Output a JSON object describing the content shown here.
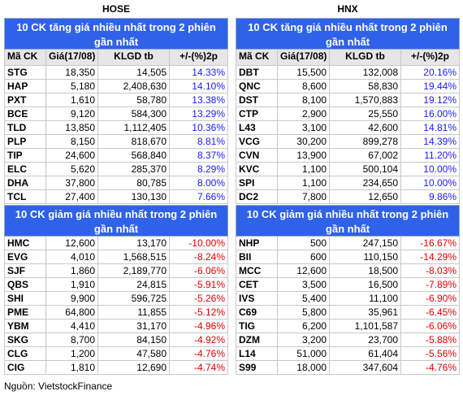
{
  "exchanges": [
    {
      "name": "HOSE",
      "gainers": {
        "title": "10 CK tăng giá nhiều nhất trong 2 phiên gần nhất",
        "columns": [
          "Mã CK",
          "Giá(17/08)",
          "KLGD tb",
          "+/-(%)2p"
        ],
        "rows": [
          [
            "STG",
            "18,350",
            "14,505",
            "14.33%"
          ],
          [
            "HAP",
            "5,180",
            "2,408,630",
            "14.10%"
          ],
          [
            "PXT",
            "1,610",
            "58,780",
            "13.38%"
          ],
          [
            "BCE",
            "9,120",
            "584,300",
            "13.29%"
          ],
          [
            "TLD",
            "13,850",
            "1,112,405",
            "10.36%"
          ],
          [
            "PLP",
            "8,150",
            "818,670",
            "8.81%"
          ],
          [
            "TIP",
            "24,600",
            "568,840",
            "8.37%"
          ],
          [
            "ELC",
            "5,620",
            "285,370",
            "8.29%"
          ],
          [
            "DHA",
            "37,800",
            "80,785",
            "8.00%"
          ],
          [
            "TCL",
            "27,400",
            "130,130",
            "7.66%"
          ]
        ]
      },
      "losers": {
        "title": "10 CK giảm giá nhiều nhất trong 2 phiên gần nhất",
        "rows": [
          [
            "HMC",
            "12,600",
            "13,170",
            "-10.00%"
          ],
          [
            "EVG",
            "4,010",
            "1,568,515",
            "-8.24%"
          ],
          [
            "SJF",
            "1,860",
            "2,189,770",
            "-6.06%"
          ],
          [
            "QBS",
            "1,910",
            "24,815",
            "-5.91%"
          ],
          [
            "SHI",
            "9,900",
            "596,725",
            "-5.26%"
          ],
          [
            "PME",
            "64,800",
            "11,855",
            "-5.12%"
          ],
          [
            "YBM",
            "4,410",
            "31,170",
            "-4.96%"
          ],
          [
            "SKG",
            "8,700",
            "84,150",
            "-4.92%"
          ],
          [
            "CLG",
            "1,200",
            "47,580",
            "-4.76%"
          ],
          [
            "CIG",
            "1,810",
            "12,690",
            "-4.74%"
          ]
        ]
      }
    },
    {
      "name": "HNX",
      "gainers": {
        "title": "10 CK tăng giá nhiều nhất trong 2 phiên gần nhất",
        "columns": [
          "Mã CK",
          "Giá(17/08)",
          "KLGD tb",
          "+/-(%)2p"
        ],
        "rows": [
          [
            "DBT",
            "15,500",
            "132,008",
            "20.16%"
          ],
          [
            "QNC",
            "8,600",
            "58,830",
            "19.44%"
          ],
          [
            "DST",
            "8,100",
            "1,570,883",
            "19.12%"
          ],
          [
            "CTP",
            "2,900",
            "25,550",
            "16.00%"
          ],
          [
            "L43",
            "3,100",
            "42,600",
            "14.81%"
          ],
          [
            "VCG",
            "30,200",
            "899,278",
            "14.39%"
          ],
          [
            "CVN",
            "13,900",
            "67,002",
            "11.20%"
          ],
          [
            "KVC",
            "1,100",
            "500,104",
            "10.00%"
          ],
          [
            "SPI",
            "1,100",
            "234,650",
            "10.00%"
          ],
          [
            "DC2",
            "7,800",
            "12,650",
            "9.86%"
          ]
        ]
      },
      "losers": {
        "title": "10 CK giảm giá nhiều nhất trong 2 phiên gần nhất",
        "rows": [
          [
            "NHP",
            "500",
            "247,150",
            "-16.67%"
          ],
          [
            "BII",
            "600",
            "110,150",
            "-14.29%"
          ],
          [
            "MCC",
            "12,600",
            "18,500",
            "-8.03%"
          ],
          [
            "CET",
            "3,500",
            "16,500",
            "-7.89%"
          ],
          [
            "IVS",
            "5,400",
            "11,100",
            "-6.90%"
          ],
          [
            "C69",
            "5,800",
            "35,961",
            "-6.45%"
          ],
          [
            "TIG",
            "6,200",
            "1,101,587",
            "-6.06%"
          ],
          [
            "DZM",
            "3,200",
            "23,700",
            "-5.88%"
          ],
          [
            "L14",
            "51,000",
            "61,404",
            "-5.56%"
          ],
          [
            "S99",
            "18,000",
            "347,604",
            "-4.76%"
          ]
        ]
      }
    }
  ],
  "source": "Nguồn: VietstockFinance"
}
